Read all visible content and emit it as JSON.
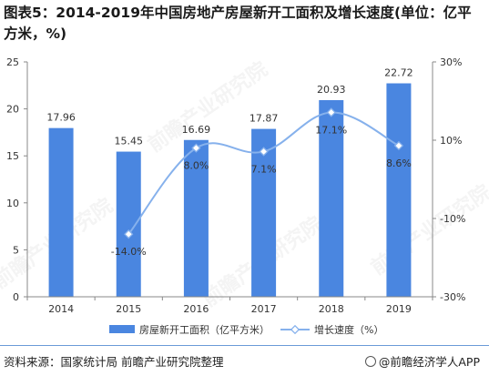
{
  "title": "图表5：2014-2019年中国房地产房屋新开工面积及增长速度(单位：亿平方米，%)",
  "source_label": "资料来源：国家统计局 前瞻产业研究院整理",
  "brand_label": "@前瞻经济学人APP",
  "watermark": "前瞻产业研究院",
  "chart_data": {
    "type": "bar",
    "categories": [
      "2014",
      "2015",
      "2016",
      "2017",
      "2018",
      "2019"
    ],
    "series": [
      {
        "name": "房屋新开工面积（亿平方米）",
        "type": "bar",
        "axis": "left",
        "values": [
          17.96,
          15.45,
          16.69,
          17.87,
          20.93,
          22.72
        ],
        "labels": [
          "17.96",
          "15.45",
          "16.69",
          "17.87",
          "20.93",
          "22.72"
        ]
      },
      {
        "name": "增长速度（%）",
        "type": "line",
        "axis": "right",
        "values": [
          null,
          -14.0,
          8.0,
          7.1,
          17.1,
          8.6
        ],
        "labels": [
          "",
          "-14.0%",
          "8.0%",
          "7.1%",
          "17.1%",
          "8.6%"
        ]
      }
    ],
    "y_left": {
      "min": 0,
      "max": 25,
      "ticks": [
        "0",
        "5",
        "10",
        "15",
        "20",
        "25"
      ]
    },
    "y_right": {
      "min": -30,
      "max": 30,
      "ticks": [
        "-30%",
        "-10%",
        "10%",
        "30%"
      ],
      "tick_values": [
        -30,
        -10,
        10,
        30
      ]
    },
    "colors": {
      "bar": "#4a86e0",
      "line": "#86b1ec",
      "axis": "#888888"
    },
    "legend_position": "bottom",
    "grid": false
  }
}
